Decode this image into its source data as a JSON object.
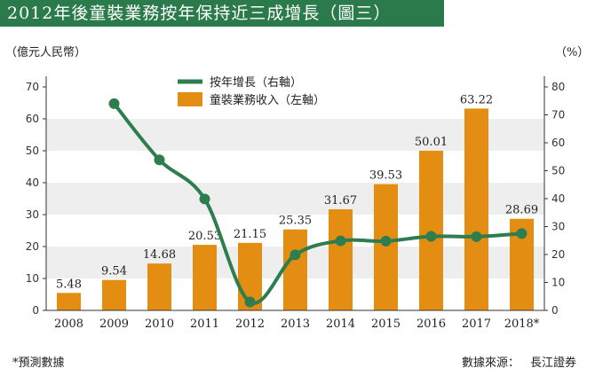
{
  "title": "2012年後童裝業務按年保持近三成增長（圖三）",
  "left_unit": "（億元人民幣）",
  "right_unit": "（%）",
  "footnote": "*預測數據",
  "source_label": "數據來源：",
  "source_name": "長江證券",
  "colors": {
    "title_bg": "#2b7a4b",
    "bar": "#e38d12",
    "line": "#2e7d4e",
    "band": "#eeeeee"
  },
  "chart_data": {
    "type": "bar+line",
    "categories": [
      "2008",
      "2009",
      "2010",
      "2011",
      "2012",
      "2013",
      "2014",
      "2015",
      "2016",
      "2017",
      "2018*"
    ],
    "series": [
      {
        "name": "童裝業務收入（左軸）",
        "type": "bar",
        "axis": "left",
        "values": [
          5.48,
          9.54,
          14.68,
          20.53,
          21.15,
          25.35,
          31.67,
          39.53,
          50.01,
          63.22,
          28.69
        ],
        "labels": [
          "5.48",
          "9.54",
          "14.68",
          "20.53",
          "21.15",
          "25.35",
          "31.67",
          "39.53",
          "50.01",
          "63.22",
          "28.69"
        ]
      },
      {
        "name": "按年增長（右軸）",
        "type": "line",
        "axis": "right",
        "values": [
          null,
          74,
          53.9,
          39.9,
          3,
          19.9,
          24.9,
          24.8,
          26.5,
          26.4,
          27.5
        ]
      }
    ],
    "left_axis": {
      "min": 0,
      "max": 70,
      "ticks": [
        "0",
        "10",
        "20",
        "30",
        "40",
        "50",
        "60",
        "70"
      ]
    },
    "right_axis": {
      "min": 0,
      "max": 80,
      "ticks": [
        "0",
        "10",
        "20",
        "30",
        "40",
        "50",
        "60",
        "70",
        "80"
      ]
    },
    "legend": [
      "按年增長（右軸）",
      "童裝業務收入（左軸）"
    ],
    "legend_position": "top-left"
  }
}
